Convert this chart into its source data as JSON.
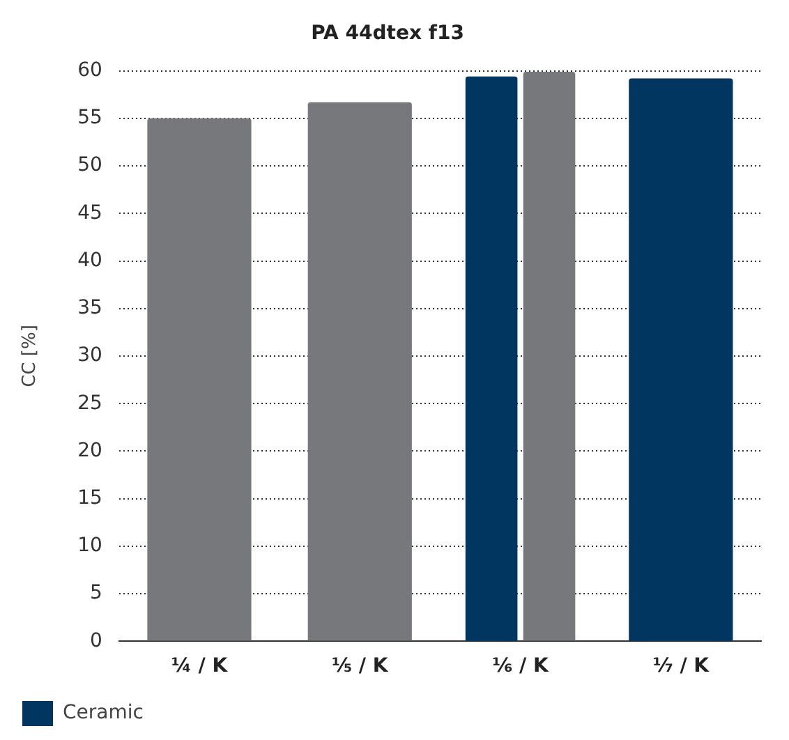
{
  "chart_data": {
    "type": "bar",
    "title": "PA 44dtex f13",
    "ylabel": "CC [%]",
    "categories": [
      "¼ / K",
      "⅕ / K",
      "⅙ / K",
      "⅐ / K"
    ],
    "series": [
      {
        "name": "Ceramic",
        "color": "#003660",
        "values": [
          null,
          null,
          59.4,
          59.2
        ]
      },
      {
        "color": "#77787b",
        "values": [
          55.0,
          56.7,
          59.9,
          null
        ]
      }
    ],
    "ylim": [
      0,
      60
    ],
    "yticks": [
      0,
      5,
      10,
      15,
      20,
      25,
      30,
      35,
      40,
      45,
      50,
      55,
      60
    ],
    "grid": "y",
    "legend": "bottom left"
  }
}
